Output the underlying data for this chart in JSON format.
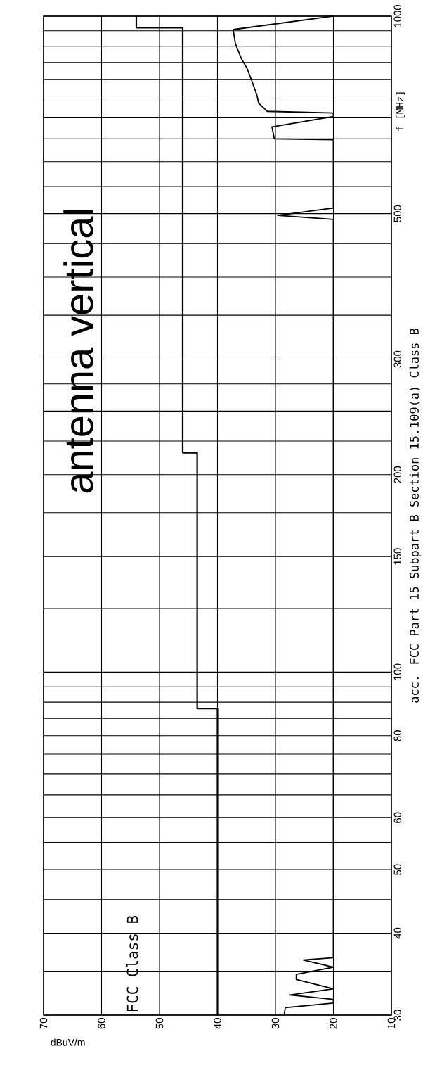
{
  "chart_data": {
    "type": "line",
    "title": "acc. FCC Part 15 Subpart B Section 15.109(a) Class B",
    "xlabel": "dBuV/m",
    "ylabel": "f [MHz]",
    "log": "y",
    "grid": true,
    "annotations": [
      "antenna vertical"
    ],
    "xlim": [
      70,
      10
    ],
    "ylim": [
      30,
      1000
    ],
    "xticks": [
      70,
      60,
      50,
      40,
      30,
      20,
      10
    ],
    "yticks": [
      30,
      {
        "value": 35,
        "label": null
      },
      40,
      {
        "value": 45,
        "label": null
      },
      50,
      {
        "value": 55,
        "label": null
      },
      60,
      {
        "value": 65,
        "label": null
      },
      {
        "value": 70,
        "label": null
      },
      {
        "value": 75,
        "label": null
      },
      80,
      {
        "value": 85,
        "label": null
      },
      {
        "value": 90,
        "label": null
      },
      {
        "value": 95,
        "label": null
      },
      100,
      {
        "value": 125,
        "label": null
      },
      150,
      {
        "value": 175,
        "label": null
      },
      200,
      {
        "value": 225,
        "label": null
      },
      {
        "value": 250,
        "label": null
      },
      {
        "value": 275,
        "label": null
      },
      300,
      {
        "value": 350,
        "label": null
      },
      {
        "value": 400,
        "label": null
      },
      {
        "value": 450,
        "label": null
      },
      500,
      {
        "value": 550,
        "label": null
      },
      {
        "value": 600,
        "label": null
      },
      {
        "value": 650,
        "label": null
      },
      {
        "value": 700,
        "label": null
      },
      {
        "value": 750,
        "label": null
      },
      {
        "value": 800,
        "label": null
      },
      {
        "value": 850,
        "label": null
      },
      {
        "value": 900,
        "label": null
      },
      {
        "value": 950,
        "label": null
      },
      1000
    ],
    "series": [
      {
        "name": "FCC Class B",
        "color": "#000000",
        "x": [
          40,
          40,
          43.5,
          43.5,
          46,
          46,
          54,
          54
        ],
        "values": [
          30,
          88,
          88,
          216,
          216,
          960,
          960,
          1000
        ]
      },
      {
        "color": "#000000",
        "x": [
          28.5,
          28.3,
          20,
          20,
          27.5,
          20,
          26.4,
          26.4,
          20,
          25.2,
          20,
          20,
          29.6,
          20,
          20,
          30.2,
          30.6,
          20,
          20,
          31.4,
          32.9,
          33.2,
          34.2,
          34.9,
          35.9,
          36.9,
          37.3,
          20
        ],
        "values": [
          30,
          30.8,
          31.3,
          31.7,
          32.2,
          32.9,
          34.0,
          34.6,
          35.5,
          36.4,
          36.7,
          490,
          497,
          510,
          648,
          650,
          678,
          703,
          712,
          716,
          737,
          758,
          802,
          833,
          862,
          908,
          954,
          1000
        ]
      }
    ]
  }
}
